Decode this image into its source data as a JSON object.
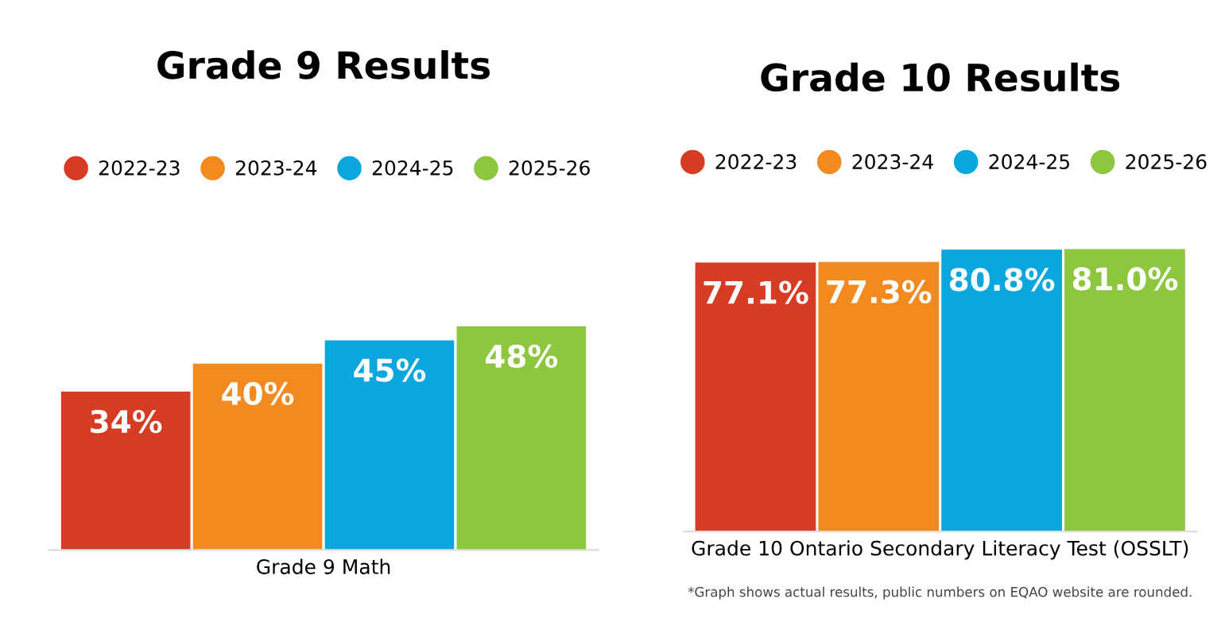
{
  "chart_data": [
    {
      "type": "bar",
      "title": "Grade 9 Results",
      "categories": [
        null
      ],
      "xlabel": "Grade 9 Math",
      "legend": "top",
      "series": [
        {
          "name": "2022-23",
          "color": "#d63b24",
          "values": [
            34
          ],
          "value_labels": [
            "34%"
          ]
        },
        {
          "name": "2023-24",
          "color": "#f28a1f",
          "values": [
            40
          ],
          "value_labels": [
            "40%"
          ]
        },
        {
          "name": "2024-25",
          "color": "#0aa6de",
          "values": [
            45
          ],
          "value_labels": [
            "45%"
          ]
        },
        {
          "name": "2025-26",
          "color": "#8dc63f",
          "values": [
            48
          ],
          "value_labels": [
            "48%"
          ]
        }
      ]
    },
    {
      "type": "bar",
      "title": "Grade 10 Results",
      "categories": [
        null
      ],
      "xlabel": "Grade 10 Ontario Secondary Literacy Test (OSSLT)",
      "legend": "top",
      "annotations": [
        "*Graph shows actual results, public numbers on EQAO website are rounded."
      ],
      "series": [
        {
          "name": "2022-23",
          "color": "#d63b24",
          "values": [
            77.1
          ],
          "value_labels": [
            "77.1%"
          ]
        },
        {
          "name": "2023-24",
          "color": "#f28a1f",
          "values": [
            77.3
          ],
          "value_labels": [
            "77.3%"
          ]
        },
        {
          "name": "2024-25",
          "color": "#0aa6de",
          "values": [
            80.8
          ],
          "value_labels": [
            "80.8%"
          ]
        },
        {
          "name": "2025-26",
          "color": "#8dc63f",
          "values": [
            81.0
          ],
          "value_labels": [
            "81.0%"
          ]
        }
      ]
    }
  ]
}
